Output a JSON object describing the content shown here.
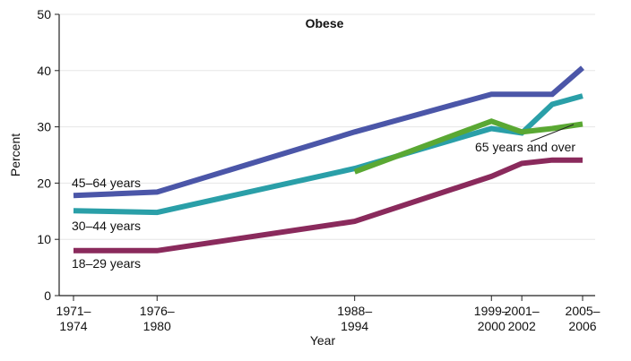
{
  "chart_data": {
    "type": "line",
    "title": "Obese",
    "xlabel": "Year",
    "ylabel": "Percent",
    "ylim": [
      0,
      50
    ],
    "yticks": [
      0,
      10,
      20,
      30,
      40,
      50
    ],
    "x_positions": [
      1972.5,
      1978,
      1991,
      2000,
      2002,
      2006
    ],
    "x_tick_labels": [
      {
        "x": 1972.5,
        "line1": "1971–",
        "line2": "1974"
      },
      {
        "x": 1978,
        "line1": "1976–",
        "line2": "1980"
      },
      {
        "x": 1991,
        "line1": "1988–",
        "line2": "1994"
      },
      {
        "x": 2000,
        "line1": "1999–",
        "line2": "2000"
      },
      {
        "x": 2002,
        "line1": "2001–",
        "line2": "2002"
      },
      {
        "x": 2006,
        "line1": "2005–",
        "line2": "2006"
      }
    ],
    "xlim": [
      1972.5,
      2006
    ],
    "grid": true,
    "series": [
      {
        "name": "45–64 years",
        "color": "#4b56a8",
        "points": [
          [
            1972.5,
            17.8
          ],
          [
            1978,
            18.4
          ],
          [
            1991,
            29.1
          ],
          [
            2000,
            35.8
          ],
          [
            2002,
            35.8
          ],
          [
            2004,
            35.8
          ],
          [
            2006,
            40.5
          ]
        ]
      },
      {
        "name": "30–44 years",
        "color": "#2a9fa8",
        "points": [
          [
            1972.5,
            15.1
          ],
          [
            1978,
            14.8
          ],
          [
            1991,
            22.6
          ],
          [
            2000,
            29.7
          ],
          [
            2002,
            28.9
          ],
          [
            2004,
            34.0
          ],
          [
            2006,
            35.5
          ]
        ]
      },
      {
        "name": "65 years and over",
        "color": "#5aa833",
        "points": [
          [
            1991,
            22.0
          ],
          [
            2000,
            31.0
          ],
          [
            2002,
            29.1
          ],
          [
            2004,
            29.7
          ],
          [
            2006,
            30.5
          ]
        ]
      },
      {
        "name": "18–29 years",
        "color": "#8a2a5c",
        "points": [
          [
            1972.5,
            8.0
          ],
          [
            1978,
            8.0
          ],
          [
            1991,
            13.2
          ],
          [
            2000,
            21.2
          ],
          [
            2002,
            23.5
          ],
          [
            2004,
            24.1
          ],
          [
            2006,
            24.1
          ]
        ]
      }
    ],
    "annotations": [
      {
        "text": "45–64 years",
        "series": "45–64 years"
      },
      {
        "text": "30–44 years",
        "series": "30–44 years"
      },
      {
        "text": "18–29 years",
        "series": "18–29 years"
      },
      {
        "text": "65 years and over",
        "series": "65 years and over"
      }
    ]
  }
}
